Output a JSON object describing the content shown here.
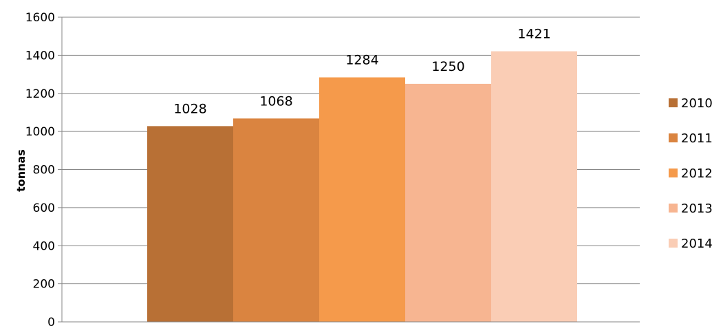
{
  "chart_data": {
    "type": "bar",
    "ylabel": "tonnas",
    "ylim": [
      0,
      1600
    ],
    "y_ticks": [
      0,
      200,
      400,
      600,
      800,
      1000,
      1200,
      1400,
      1600
    ],
    "grid": true,
    "legend_position": "right",
    "series": [
      {
        "name": "2010",
        "value": 1028,
        "color": "#B87035"
      },
      {
        "name": "2011",
        "value": 1068,
        "color": "#DA8440"
      },
      {
        "name": "2012",
        "value": 1284,
        "color": "#F59A4B"
      },
      {
        "name": "2013",
        "value": 1250,
        "color": "#F7B591"
      },
      {
        "name": "2014",
        "value": 1421,
        "color": "#FACDB5"
      }
    ]
  }
}
